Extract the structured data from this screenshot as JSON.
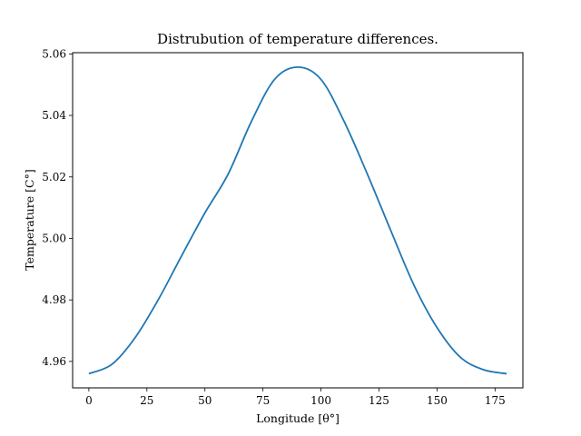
{
  "chart_data": {
    "type": "line",
    "title": "Distrubution of temperature differences.",
    "xlabel": "Longitude [θ°]",
    "ylabel": "Temperature [C°]",
    "xlim": [
      -7,
      187
    ],
    "ylim": [
      4.9514,
      5.0604
    ],
    "x_ticks": [
      0,
      25,
      50,
      75,
      100,
      125,
      150,
      175
    ],
    "y_ticks": [
      4.96,
      4.98,
      5.0,
      5.02,
      5.04,
      5.06
    ],
    "x_tick_labels": [
      "0",
      "25",
      "50",
      "75",
      "100",
      "125",
      "150",
      "175"
    ],
    "y_tick_labels": [
      "4.96",
      "4.98",
      "5.00",
      "5.02",
      "5.04",
      "5.06"
    ],
    "grid": false,
    "series": [
      {
        "color": "#1f77b4",
        "x": [
          0,
          10,
          20,
          30,
          40,
          50,
          60,
          70,
          80,
          90,
          100,
          110,
          120,
          130,
          140,
          150,
          160,
          170,
          180
        ],
        "values": [
          4.956,
          4.9591,
          4.9678,
          4.9802,
          4.9944,
          5.0083,
          5.0209,
          5.038,
          5.0517,
          5.0557,
          5.0517,
          5.038,
          5.0209,
          5.0027,
          4.9849,
          4.971,
          4.9614,
          4.9573,
          4.956
        ]
      }
    ]
  }
}
